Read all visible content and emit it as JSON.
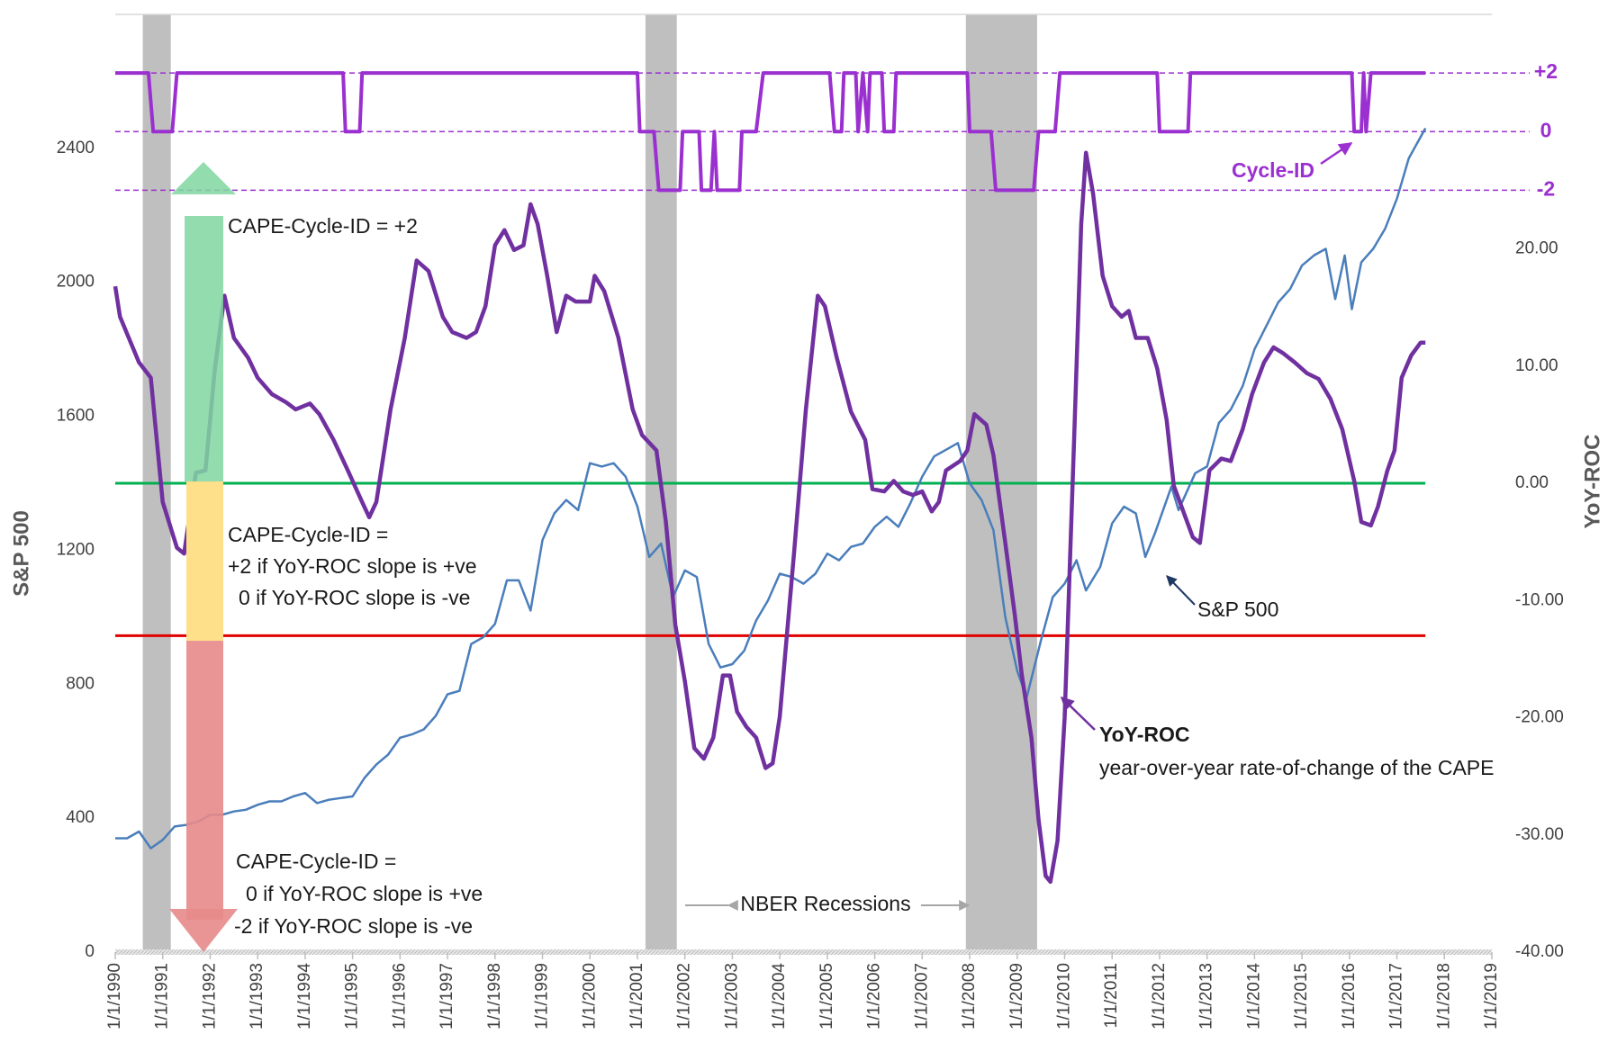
{
  "chart_data": {
    "type": "line",
    "y_label": "S&P 500",
    "y2_label": "YoY-ROC",
    "xlim": [
      1990,
      2019
    ],
    "xticks": [
      {
        "value": 1990,
        "label": "1/1/1990"
      },
      {
        "value": 1991,
        "label": "1/1/1991"
      },
      {
        "value": 1992,
        "label": "1/1/1992"
      },
      {
        "value": 1993,
        "label": "1/1/1993"
      },
      {
        "value": 1994,
        "label": "1/1/1994"
      },
      {
        "value": 1995,
        "label": "1/1/1995"
      },
      {
        "value": 1996,
        "label": "1/1/1996"
      },
      {
        "value": 1997,
        "label": "1/1/1997"
      },
      {
        "value": 1998,
        "label": "1/1/1998"
      },
      {
        "value": 1999,
        "label": "1/1/1999"
      },
      {
        "value": 2000,
        "label": "1/1/2000"
      },
      {
        "value": 2001,
        "label": "1/1/2001"
      },
      {
        "value": 2002,
        "label": "1/1/2002"
      },
      {
        "value": 2003,
        "label": "1/1/2003"
      },
      {
        "value": 2004,
        "label": "1/1/2004"
      },
      {
        "value": 2005,
        "label": "1/1/2005"
      },
      {
        "value": 2006,
        "label": "1/1/2006"
      },
      {
        "value": 2007,
        "label": "1/1/2007"
      },
      {
        "value": 2008,
        "label": "1/1/2008"
      },
      {
        "value": 2009,
        "label": "1/1/2009"
      },
      {
        "value": 2010,
        "label": "1/1/2010"
      },
      {
        "value": 2011,
        "label": "1/1/2011"
      },
      {
        "value": 2012,
        "label": "1/1/2012"
      },
      {
        "value": 2013,
        "label": "1/1/2013"
      },
      {
        "value": 2014,
        "label": "1/1/2014"
      },
      {
        "value": 2015,
        "label": "1/1/2015"
      },
      {
        "value": 2016,
        "label": "1/1/2016"
      },
      {
        "value": 2017,
        "label": "1/1/2017"
      },
      {
        "value": 2018,
        "label": "1/1/2018"
      },
      {
        "value": 2019,
        "label": "1/1/2019"
      }
    ],
    "ylim": [
      0,
      2800
    ],
    "yticks": [
      0,
      400,
      800,
      1200,
      1600,
      2000,
      2400
    ],
    "y2lim": [
      -40,
      40
    ],
    "y2ticks": [
      {
        "value": -40,
        "label": "-40.00"
      },
      {
        "value": -30,
        "label": "-30.00"
      },
      {
        "value": -20,
        "label": "-20.00"
      },
      {
        "value": -10,
        "label": "-10.00"
      },
      {
        "value": 0,
        "label": "0.00"
      },
      {
        "value": 10,
        "label": "10.00"
      },
      {
        "value": 20,
        "label": "20.00"
      }
    ],
    "cycle_lim": [
      -28,
      4
    ],
    "cycle_ticks": [
      {
        "value": 2,
        "label": "+2"
      },
      0,
      {
        "value": -2,
        "label": "-2"
      }
    ],
    "cycle_color": "#9b30d0",
    "recessions": [
      [
        1990.58,
        1991.17
      ],
      [
        2001.17,
        2001.83
      ],
      [
        2007.92,
        2009.42
      ]
    ],
    "recession_color": "#bfbfbf",
    "reference_lines": [
      {
        "axis": "y2",
        "value": 0,
        "color": "#00b050"
      },
      {
        "axis": "y2",
        "value": -13,
        "color": "#e00000"
      }
    ],
    "series": [
      {
        "name": "S&P 500",
        "color": "#4a7ebb",
        "axis": "y",
        "x": [
          1990.0,
          1990.25,
          1990.5,
          1990.75,
          1991.0,
          1991.25,
          1991.5,
          1991.75,
          1992.0,
          1992.25,
          1992.5,
          1992.75,
          1993.0,
          1993.25,
          1993.5,
          1993.75,
          1994.0,
          1994.25,
          1994.5,
          1994.75,
          1995.0,
          1995.25,
          1995.5,
          1995.75,
          1996.0,
          1996.25,
          1996.5,
          1996.75,
          1997.0,
          1997.25,
          1997.5,
          1997.75,
          1998.0,
          1998.25,
          1998.5,
          1998.75,
          1999.0,
          1999.25,
          1999.5,
          1999.75,
          2000.0,
          2000.25,
          2000.5,
          2000.75,
          2001.0,
          2001.25,
          2001.5,
          2001.75,
          2002.0,
          2002.25,
          2002.5,
          2002.75,
          2003.0,
          2003.25,
          2003.5,
          2003.75,
          2004.0,
          2004.25,
          2004.5,
          2004.75,
          2005.0,
          2005.25,
          2005.5,
          2005.75,
          2006.0,
          2006.25,
          2006.5,
          2006.75,
          2007.0,
          2007.25,
          2007.5,
          2007.75,
          2008.0,
          2008.25,
          2008.5,
          2008.75,
          2009.0,
          2009.2,
          2009.5,
          2009.75,
          2010.0,
          2010.25,
          2010.45,
          2010.75,
          2011.0,
          2011.25,
          2011.5,
          2011.7,
          2011.9,
          2012.25,
          2012.4,
          2012.75,
          2013.0,
          2013.25,
          2013.5,
          2013.75,
          2014.0,
          2014.25,
          2014.5,
          2014.75,
          2015.0,
          2015.25,
          2015.5,
          2015.7,
          2015.9,
          2016.05,
          2016.25,
          2016.5,
          2016.75,
          2017.0,
          2017.25,
          2017.6
        ],
        "values": [
          340,
          340,
          360,
          310,
          335,
          375,
          380,
          390,
          410,
          410,
          420,
          425,
          440,
          450,
          450,
          465,
          475,
          445,
          455,
          460,
          465,
          520,
          560,
          590,
          640,
          650,
          665,
          705,
          770,
          780,
          920,
          940,
          980,
          1110,
          1110,
          1020,
          1230,
          1310,
          1350,
          1320,
          1460,
          1450,
          1460,
          1420,
          1330,
          1180,
          1220,
          1060,
          1140,
          1120,
          920,
          850,
          860,
          900,
          990,
          1050,
          1130,
          1120,
          1100,
          1130,
          1190,
          1170,
          1210,
          1220,
          1270,
          1300,
          1270,
          1340,
          1420,
          1480,
          1500,
          1520,
          1400,
          1350,
          1260,
          1000,
          840,
          760,
          930,
          1060,
          1100,
          1170,
          1080,
          1150,
          1280,
          1330,
          1310,
          1180,
          1250,
          1390,
          1320,
          1430,
          1450,
          1580,
          1620,
          1690,
          1800,
          1870,
          1940,
          1980,
          2050,
          2080,
          2100,
          1950,
          2080,
          1920,
          2060,
          2100,
          2160,
          2250,
          2370,
          2460
        ]
      },
      {
        "name": "YoY-ROC",
        "color": "#7030a0",
        "axis": "y2",
        "x": [
          1990.0,
          1990.1,
          1990.5,
          1990.75,
          1991.0,
          1991.3,
          1991.45,
          1991.7,
          1991.9,
          1992.1,
          1992.3,
          1992.5,
          1992.8,
          1993.0,
          1993.3,
          1993.6,
          1993.8,
          1994.1,
          1994.3,
          1994.6,
          1994.9,
          1995.2,
          1995.35,
          1995.5,
          1995.8,
          1996.1,
          1996.35,
          1996.6,
          1996.9,
          1997.1,
          1997.4,
          1997.6,
          1997.8,
          1998.0,
          1998.2,
          1998.4,
          1998.6,
          1998.75,
          1998.9,
          1999.1,
          1999.3,
          1999.5,
          1999.7,
          2000.0,
          2000.1,
          2000.3,
          2000.6,
          2000.9,
          2001.1,
          2001.4,
          2001.6,
          2001.8,
          2002.0,
          2002.2,
          2002.4,
          2002.6,
          2002.8,
          2002.95,
          2003.1,
          2003.3,
          2003.5,
          2003.7,
          2003.85,
          2004.0,
          2004.3,
          2004.55,
          2004.8,
          2004.95,
          2005.2,
          2005.5,
          2005.8,
          2005.95,
          2006.2,
          2006.4,
          2006.6,
          2006.8,
          2007.0,
          2007.2,
          2007.35,
          2007.5,
          2007.8,
          2007.95,
          2008.1,
          2008.35,
          2008.5,
          2008.75,
          2008.95,
          2009.1,
          2009.3,
          2009.45,
          2009.6,
          2009.7,
          2009.85,
          2010.0,
          2010.2,
          2010.35,
          2010.45,
          2010.6,
          2010.8,
          2011.0,
          2011.2,
          2011.35,
          2011.5,
          2011.75,
          2011.95,
          2012.15,
          2012.3,
          2012.5,
          2012.7,
          2012.85,
          2013.05,
          2013.3,
          2013.5,
          2013.75,
          2013.95,
          2014.2,
          2014.4,
          2014.6,
          2014.85,
          2015.1,
          2015.35,
          2015.6,
          2015.85,
          2016.1,
          2016.25,
          2016.45,
          2016.6,
          2016.8,
          2016.95,
          2017.1,
          2017.3,
          2017.5,
          2017.6
        ],
        "values": [
          16.8,
          14.2,
          10.3,
          9,
          -1.6,
          -5.5,
          -6,
          0.9,
          1.1,
          9.8,
          16,
          12.4,
          10.7,
          9,
          7.6,
          6.9,
          6.3,
          6.8,
          5.9,
          3.7,
          1.1,
          -1.6,
          -2.9,
          -1.6,
          6.3,
          12.4,
          19,
          18.1,
          14.2,
          12.9,
          12.4,
          12.9,
          15.1,
          20.3,
          21.6,
          19.9,
          20.3,
          23.8,
          22.1,
          17.7,
          12.9,
          16,
          15.5,
          15.5,
          17.7,
          16.4,
          12.4,
          6.3,
          4.1,
          2.8,
          -3.3,
          -12.1,
          -16.9,
          -22.6,
          -23.5,
          -21.7,
          -16.4,
          -16.4,
          -19.5,
          -20.8,
          -21.7,
          -24.3,
          -23.9,
          -19.9,
          -5.9,
          6.3,
          16,
          15.1,
          10.7,
          6.1,
          3.7,
          -0.5,
          -0.7,
          0.2,
          -0.7,
          -1,
          -0.7,
          -2.4,
          -1.6,
          1.1,
          1.9,
          2.8,
          5.9,
          5,
          2.4,
          -5.1,
          -11.2,
          -16.4,
          -21.7,
          -28.7,
          -33.5,
          -34,
          -30.5,
          -20,
          3.7,
          22.1,
          28.2,
          24.7,
          17.7,
          15.1,
          14.2,
          14.7,
          12.4,
          12.4,
          9.8,
          5.4,
          -0.2,
          -2.4,
          -4.6,
          -5.1,
          1.1,
          2.1,
          1.9,
          4.6,
          7.6,
          10.3,
          11.6,
          11.1,
          10.3,
          9.4,
          8.9,
          7.2,
          4.6,
          0.2,
          -3.3,
          -3.6,
          -2,
          1.1,
          2.8,
          9,
          10.9,
          12,
          12
        ]
      },
      {
        "name": "Cycle-ID",
        "color": "#9b30d0",
        "axis": "cycle",
        "x": [
          1990.0,
          1990.7,
          1990.8,
          1991.2,
          1991.3,
          1994.8,
          1994.85,
          1995.15,
          1995.2,
          2001.0,
          2001.05,
          2001.35,
          2001.45,
          2001.9,
          2001.95,
          2002.3,
          2002.35,
          2002.55,
          2002.62,
          2002.68,
          2003.15,
          2003.2,
          2003.5,
          2003.65,
          2005.05,
          2005.15,
          2005.3,
          2005.35,
          2005.6,
          2005.65,
          2005.75,
          2005.85,
          2005.9,
          2006.15,
          2006.2,
          2006.4,
          2006.45,
          2007.95,
          2008.0,
          2008.45,
          2008.55,
          2009.35,
          2009.45,
          2009.8,
          2009.9,
          2011.95,
          2012.0,
          2012.6,
          2012.65,
          2016.05,
          2016.1,
          2016.25,
          2016.3,
          2016.35,
          2016.45,
          2017.6
        ],
        "values": [
          2,
          2,
          0,
          0,
          2,
          2,
          0,
          0,
          2,
          2,
          0,
          0,
          -2,
          -2,
          0,
          0,
          -2,
          -2,
          0,
          -2,
          -2,
          0,
          0,
          2,
          2,
          0,
          0,
          2,
          2,
          0,
          2,
          0,
          2,
          2,
          0,
          0,
          2,
          2,
          0,
          0,
          -2,
          -2,
          0,
          0,
          2,
          2,
          0,
          0,
          2,
          2,
          0,
          0,
          2,
          0,
          2,
          2
        ]
      }
    ],
    "annotations": {
      "cycle_plus2": "CAPE-Cycle-ID = +2",
      "rule_zero": [
        "CAPE-Cycle-ID =",
        "+2 if YoY-ROC slope is +ve",
        "0 if YoY-ROC slope is -ve"
      ],
      "rule_minus": [
        "CAPE-Cycle-ID =",
        "0 if YoY-ROC slope is +ve",
        "-2 if YoY-ROC slope is -ve"
      ],
      "nber": "NBER Recessions",
      "yoy_desc": "year-over-year rate-of-change of the CAPE"
    }
  }
}
